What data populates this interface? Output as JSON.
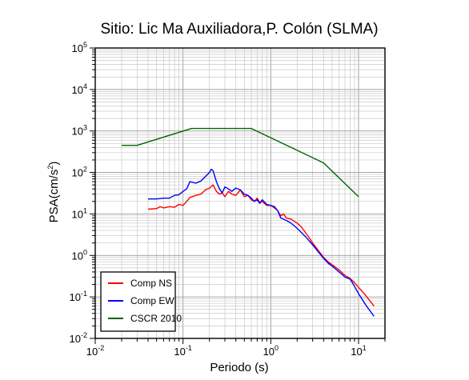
{
  "chart_data": {
    "type": "line",
    "title": "Sitio: Lic Ma Auxiliadora,P. Colón (SLMA)",
    "xlabel": "Periodo (s)",
    "ylabel": "PSA(cm/s²)",
    "ylabel_main": "PSA(cm/s",
    "ylabel_sup": "2",
    "ylabel_end": ")",
    "xscale": "log",
    "yscale": "log",
    "xlim": [
      0.01,
      20
    ],
    "ylim": [
      0.01,
      100000
    ],
    "grid": true,
    "legend_position": "bottom-left",
    "x_tick_labels": [
      {
        "base": "10",
        "exp": "-2"
      },
      {
        "base": "10",
        "exp": "-1"
      },
      {
        "base": "10",
        "exp": "0"
      },
      {
        "base": "10",
        "exp": "1"
      }
    ],
    "y_tick_labels": [
      {
        "base": "10",
        "exp": "-2"
      },
      {
        "base": "10",
        "exp": "-1"
      },
      {
        "base": "10",
        "exp": "0"
      },
      {
        "base": "10",
        "exp": "1"
      },
      {
        "base": "10",
        "exp": "2"
      },
      {
        "base": "10",
        "exp": "3"
      },
      {
        "base": "10",
        "exp": "4"
      },
      {
        "base": "10",
        "exp": "5"
      }
    ],
    "series": [
      {
        "name": "Comp NS",
        "color": "#ff0000",
        "x": [
          0.04,
          0.05,
          0.055,
          0.06,
          0.07,
          0.08,
          0.09,
          0.1,
          0.11,
          0.12,
          0.14,
          0.16,
          0.18,
          0.2,
          0.22,
          0.24,
          0.26,
          0.28,
          0.3,
          0.33,
          0.36,
          0.4,
          0.45,
          0.5,
          0.55,
          0.6,
          0.65,
          0.7,
          0.75,
          0.8,
          0.9,
          1.0,
          1.1,
          1.2,
          1.3,
          1.4,
          1.5,
          1.7,
          2.0,
          2.2,
          2.5,
          2.8,
          3.0,
          3.5,
          4.0,
          4.5,
          5.0,
          6.0,
          7.0,
          8.0,
          9.0,
          10,
          12,
          15
        ],
        "y": [
          13,
          13.5,
          15,
          14,
          15,
          14.5,
          17,
          16,
          20,
          25,
          28,
          30,
          38,
          42,
          50,
          35,
          30,
          32,
          26,
          35,
          30,
          28,
          38,
          26,
          28,
          22,
          20,
          24,
          19,
          20,
          16,
          16,
          14,
          12,
          9,
          10,
          8,
          7.5,
          6,
          5,
          3.5,
          2.5,
          2,
          1.3,
          0.9,
          0.7,
          0.6,
          0.45,
          0.33,
          0.28,
          0.22,
          0.17,
          0.11,
          0.06
        ]
      },
      {
        "name": "Comp EW",
        "color": "#0000ff",
        "x": [
          0.04,
          0.05,
          0.06,
          0.07,
          0.08,
          0.09,
          0.1,
          0.11,
          0.12,
          0.14,
          0.16,
          0.18,
          0.2,
          0.21,
          0.22,
          0.24,
          0.26,
          0.28,
          0.3,
          0.33,
          0.36,
          0.4,
          0.45,
          0.5,
          0.55,
          0.6,
          0.65,
          0.7,
          0.75,
          0.8,
          0.9,
          1.0,
          1.1,
          1.2,
          1.3,
          1.5,
          1.7,
          2.0,
          2.5,
          3.0,
          3.5,
          4.0,
          4.5,
          5.0,
          6.0,
          7.0,
          8.0,
          9.0,
          10,
          12,
          15
        ],
        "y": [
          23,
          23,
          24,
          24,
          28,
          29,
          35,
          40,
          60,
          55,
          62,
          80,
          100,
          120,
          110,
          60,
          40,
          32,
          45,
          40,
          35,
          42,
          38,
          30,
          28,
          24,
          20,
          22,
          18,
          22,
          17,
          16,
          15,
          12,
          8,
          7,
          6,
          4.5,
          2.8,
          1.8,
          1.2,
          0.85,
          0.65,
          0.55,
          0.4,
          0.3,
          0.27,
          0.18,
          0.12,
          0.065,
          0.034
        ]
      },
      {
        "name": "CSCR 2010",
        "color": "#006400",
        "x": [
          0.02,
          0.03,
          0.125,
          0.6,
          4.0,
          10
        ],
        "y": [
          450,
          450,
          1150,
          1150,
          170,
          26
        ]
      }
    ]
  }
}
